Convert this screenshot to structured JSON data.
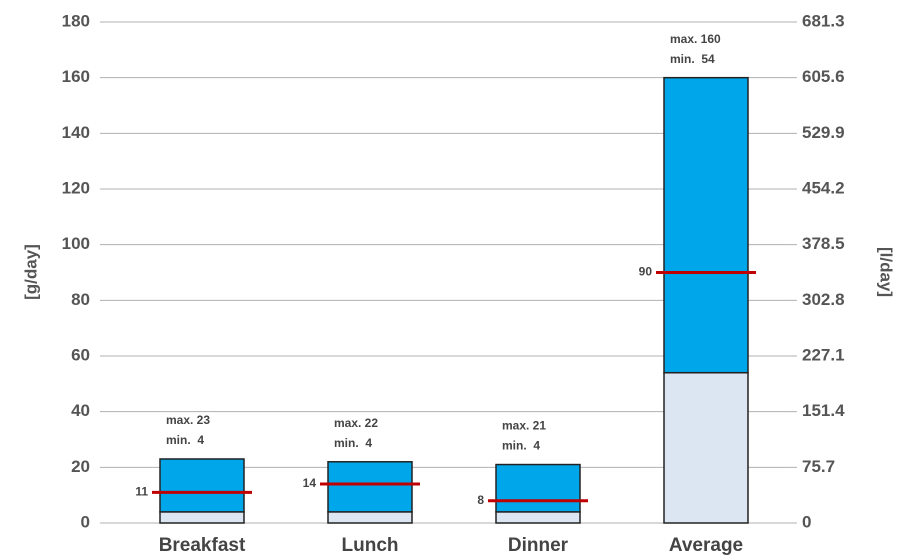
{
  "chart_data": {
    "type": "range-bar",
    "y_label": "[g/day]",
    "y2_label": "[l/day]",
    "categories": [
      "Breakfast",
      "Lunch",
      "Dinner",
      "Average"
    ],
    "series": [
      {
        "color": "#dce6f2",
        "values": [
          4,
          4,
          4,
          54
        ],
        "value_labels": [
          "min.  4",
          "min.  4",
          "min.  4",
          "min.  54"
        ]
      },
      {
        "color": "#00a6ea",
        "values": [
          23,
          22,
          21,
          160
        ],
        "value_labels": [
          "max. 23",
          "max. 22",
          "max. 21",
          "max. 160"
        ]
      }
    ],
    "mean": {
      "color": "#c00000",
      "values": [
        11,
        14,
        8,
        90
      ]
    },
    "ylim": [
      0,
      180
    ],
    "yticks": [
      0,
      20,
      40,
      60,
      80,
      100,
      120,
      140,
      160,
      180
    ],
    "y2lim": [
      0,
      681.3
    ],
    "y2ticks": [
      0,
      75.7,
      151.4,
      227.1,
      302.8,
      378.5,
      454.2,
      529.9,
      605.6,
      681.3
    ],
    "grid": true
  }
}
